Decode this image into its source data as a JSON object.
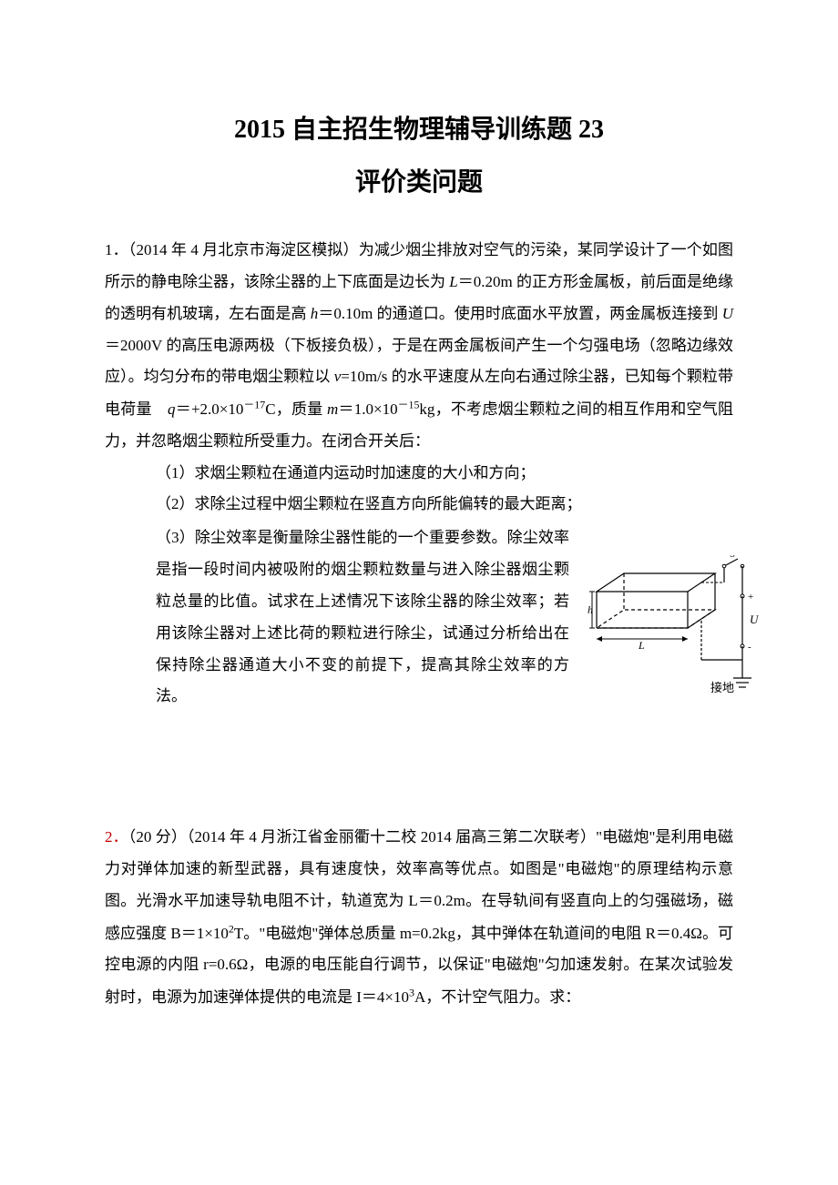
{
  "title": "2015 自主招生物理辅导训练题 23",
  "subtitle": "评价类问题",
  "p1": {
    "num": "1．",
    "source": "（2014 年 4 月北京市海淀区模拟）",
    "body_html": "为减少烟尘排放对空气的污染，某同学设计了一个如图所示的静电除尘器，该除尘器的上下底面是边长为 <span class='italic'>L</span>＝0.20m 的正方形金属板，前后面是绝缘的透明有机玻璃，左右面是高 <span class='italic'>h</span>＝0.10m 的通道口。使用时底面水平放置，两金属板连接到 <span class='italic'>U</span>＝2000V 的高压电源两极（下板接负极），于是在两金属板间产生一个匀强电场（忽略边缘效应）。均匀分布的带电烟尘颗粒以 <span class='italic'>v</span>=10m/s 的水平速度从左向右通过除尘器，已知每个颗粒带电荷量　<span class='italic'>q</span>＝+2.0×10<sup>－17</sup>C，质量 <span class='italic'>m</span>＝1.0×10<sup>－15</sup>kg，不考虑烟尘颗粒之间的相互作用和空气阻力，并忽略烟尘颗粒所受重力。在闭合开关后：",
    "q1": "（1）求烟尘颗粒在通道内运动时加速度的大小和方向；",
    "q2": "（2）求除尘过程中烟尘颗粒在竖直方向所能偏转的最大距离；",
    "q3": "（3）除尘效率是衡量除尘器性能的一个重要参数。除尘效率是指一段时间内被吸附的烟尘颗粒数量与进入除尘器烟尘颗粒总量的比值。试求在上述情况下该除尘器的除尘效率；若用该除尘器对上述比荷的颗粒进行除尘，试通过分析给出在保持除尘器通道大小不变的前提下，提高其除尘效率的方法。"
  },
  "diagram": {
    "stroke": "#000000",
    "fill": "#ffffff",
    "dash": "4,3",
    "S": "S",
    "U": "U",
    "L": "L",
    "h": "h",
    "ground": "接地",
    "plus": "+",
    "minus": "-"
  },
  "p2": {
    "num": "2．",
    "points": "（20 分）",
    "source": "（2014 年 4 月浙江省金丽衢十二校 2014 届高三第二次联考）",
    "body_html": "\"电磁炮\"是利用电磁力对弹体加速的新型武器，具有速度快，效率高等优点。如图是\"电磁炮\"的原理结构示意图。光滑水平加速导轨电阻不计，轨道宽为 L＝0.2m。在导轨间有竖直向上的匀强磁场，磁感应强度 B＝1×10<sup>2</sup>T。\"电磁炮\"弹体总质量 m=0.2kg，其中弹体在轨道间的电阻 R＝0.4Ω。可控电源的内阻 r=0.6Ω，电源的电压能自行调节，以保证\"电磁炮\"匀加速发射。在某次试验发射时，电源为加速弹体提供的电流是 I＝4×10<sup>3</sup>A，不计空气阻力。求："
  }
}
